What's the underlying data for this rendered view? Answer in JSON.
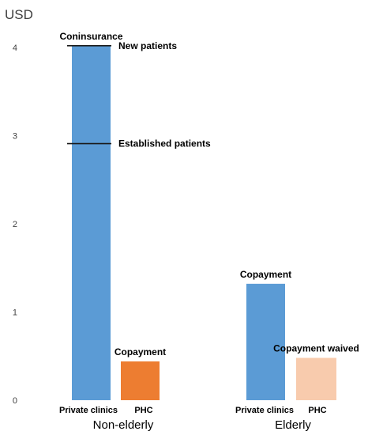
{
  "chart_data": {
    "type": "bar",
    "unit_label": "USD",
    "y_ticks": [
      "0",
      "1",
      "2",
      "3",
      "4"
    ],
    "ylim": [
      0,
      4.3
    ],
    "grid": false,
    "groups": [
      {
        "label": "Non-elderly",
        "bars": [
          {
            "category": "Private clinics",
            "value": 4.02,
            "color": "#5b9bd5",
            "annotation": "Coninsurance"
          },
          {
            "category": "PHC",
            "value": 0.44,
            "color": "#ed7d31",
            "annotation": "Copayment"
          }
        ]
      },
      {
        "label": "Elderly",
        "bars": [
          {
            "category": "Private clinics",
            "value": 1.32,
            "color": "#5b9bd5",
            "annotation": "Copayment"
          },
          {
            "category": "PHC",
            "value": 0.48,
            "color": "#f8cbad",
            "annotation": "Copayment waived"
          }
        ]
      }
    ],
    "reference_lines": [
      {
        "value": 4.02,
        "group": 0,
        "bar": 0,
        "label": "New patients"
      },
      {
        "value": 2.91,
        "group": 0,
        "bar": 0,
        "label": "Established patients"
      }
    ]
  }
}
